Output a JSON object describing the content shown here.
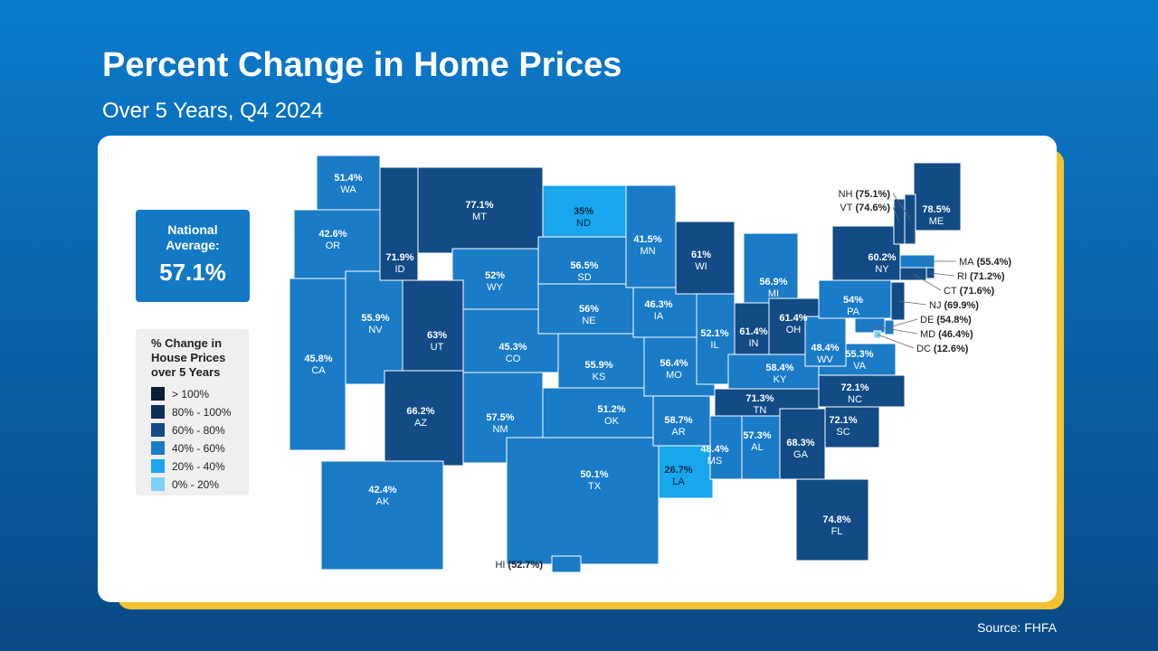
{
  "header": {
    "title": "Percent Change in Home Prices",
    "subtitle": "Over 5 Years, Q4 2024"
  },
  "national": {
    "title": "National Average:",
    "value": "57.1%"
  },
  "legend": {
    "title": "% Change in House Prices over 5 Years",
    "items": [
      {
        "label": "> 100%",
        "color": "#0b1d33"
      },
      {
        "label": "80% - 100%",
        "color": "#0f2f57"
      },
      {
        "label": "60% - 80%",
        "color": "#124b85"
      },
      {
        "label": "40% - 60%",
        "color": "#1a7bc6"
      },
      {
        "label": "20% - 40%",
        "color": "#18a7ec"
      },
      {
        "label": "0% - 20%",
        "color": "#80cff4"
      }
    ]
  },
  "states": [
    {
      "code": "WA",
      "value": 51.4,
      "label": "51.4%",
      "color": "#1a7bc6"
    },
    {
      "code": "OR",
      "value": 42.6,
      "label": "42.6%",
      "color": "#1a7bc6"
    },
    {
      "code": "CA",
      "value": 45.8,
      "label": "45.8%",
      "color": "#1a7bc6"
    },
    {
      "code": "NV",
      "value": 55.9,
      "label": "55.9%",
      "color": "#1a7bc6"
    },
    {
      "code": "ID",
      "value": 71.9,
      "label": "71.9%",
      "color": "#124b85"
    },
    {
      "code": "MT",
      "value": 77.1,
      "label": "77.1%",
      "color": "#124b85"
    },
    {
      "code": "WY",
      "value": 52,
      "label": "52%",
      "color": "#1a7bc6"
    },
    {
      "code": "UT",
      "value": 63,
      "label": "63%",
      "color": "#124b85"
    },
    {
      "code": "AZ",
      "value": 66.2,
      "label": "66.2%",
      "color": "#124b85"
    },
    {
      "code": "CO",
      "value": 45.3,
      "label": "45.3%",
      "color": "#1a7bc6"
    },
    {
      "code": "NM",
      "value": 57.5,
      "label": "57.5%",
      "color": "#1a7bc6"
    },
    {
      "code": "ND",
      "value": 35,
      "label": "35%",
      "color": "#18a7ec"
    },
    {
      "code": "SD",
      "value": 56.5,
      "label": "56.5%",
      "color": "#1a7bc6"
    },
    {
      "code": "NE",
      "value": 56,
      "label": "56%",
      "color": "#1a7bc6"
    },
    {
      "code": "KS",
      "value": 55.9,
      "label": "55.9%",
      "color": "#1a7bc6"
    },
    {
      "code": "OK",
      "value": 51.2,
      "label": "51.2%",
      "color": "#1a7bc6"
    },
    {
      "code": "TX",
      "value": 50.1,
      "label": "50.1%",
      "color": "#1a7bc6"
    },
    {
      "code": "MN",
      "value": 41.5,
      "label": "41.5%",
      "color": "#1a7bc6"
    },
    {
      "code": "IA",
      "value": 46.3,
      "label": "46.3%",
      "color": "#1a7bc6"
    },
    {
      "code": "MO",
      "value": 56.4,
      "label": "56.4%",
      "color": "#1a7bc6"
    },
    {
      "code": "AR",
      "value": 58.7,
      "label": "58.7%",
      "color": "#1a7bc6"
    },
    {
      "code": "LA",
      "value": 26.7,
      "label": "26.7%",
      "color": "#18a7ec"
    },
    {
      "code": "WI",
      "value": 61,
      "label": "61%",
      "color": "#124b85"
    },
    {
      "code": "IL",
      "value": 52.1,
      "label": "52.1%",
      "color": "#1a7bc6"
    },
    {
      "code": "MI",
      "value": 56.9,
      "label": "56.9%",
      "color": "#1a7bc6"
    },
    {
      "code": "IN",
      "value": 61.4,
      "label": "61.4%",
      "color": "#124b85"
    },
    {
      "code": "OH",
      "value": 61.4,
      "label": "61.4%",
      "color": "#124b85"
    },
    {
      "code": "KY",
      "value": 58.4,
      "label": "58.4%",
      "color": "#1a7bc6"
    },
    {
      "code": "TN",
      "value": 71.3,
      "label": "71.3%",
      "color": "#124b85"
    },
    {
      "code": "MS",
      "value": 48.4,
      "label": "48.4%",
      "color": "#1a7bc6"
    },
    {
      "code": "AL",
      "value": 57.3,
      "label": "57.3%",
      "color": "#1a7bc6"
    },
    {
      "code": "GA",
      "value": 68.3,
      "label": "68.3%",
      "color": "#124b85"
    },
    {
      "code": "FL",
      "value": 74.8,
      "label": "74.8%",
      "color": "#124b85"
    },
    {
      "code": "SC",
      "value": 72.1,
      "label": "72.1%",
      "color": "#124b85"
    },
    {
      "code": "NC",
      "value": 72.1,
      "label": "72.1%",
      "color": "#124b85"
    },
    {
      "code": "VA",
      "value": 55.3,
      "label": "55.3%",
      "color": "#1a7bc6"
    },
    {
      "code": "WV",
      "value": 48.4,
      "label": "48.4%",
      "color": "#1a7bc6"
    },
    {
      "code": "PA",
      "value": 54,
      "label": "54%",
      "color": "#1a7bc6"
    },
    {
      "code": "NY",
      "value": 60.2,
      "label": "60.2%",
      "color": "#124b85"
    },
    {
      "code": "ME",
      "value": 78.5,
      "label": "78.5%",
      "color": "#124b85"
    },
    {
      "code": "AK",
      "value": 42.4,
      "label": "42.4%",
      "color": "#1a7bc6"
    },
    {
      "code": "HI",
      "value": 52.7,
      "label": "(52.7%)",
      "color": "#1a7bc6"
    },
    {
      "code": "NH",
      "value": 75.1,
      "label": "(75.1%)",
      "color": "#124b85"
    },
    {
      "code": "VT",
      "value": 74.6,
      "label": "(74.6%)",
      "color": "#124b85"
    },
    {
      "code": "MA",
      "value": 55.4,
      "label": "(55.4%)",
      "color": "#1a7bc6"
    },
    {
      "code": "RI",
      "value": 71.2,
      "label": "(71.2%)",
      "color": "#124b85"
    },
    {
      "code": "CT",
      "value": 71.6,
      "label": "(71.6%)",
      "color": "#124b85"
    },
    {
      "code": "NJ",
      "value": 69.9,
      "label": "(69.9%)",
      "color": "#124b85"
    },
    {
      "code": "DE",
      "value": 54.8,
      "label": "(54.8%)",
      "color": "#1a7bc6"
    },
    {
      "code": "MD",
      "value": 46.4,
      "label": "(46.4%)",
      "color": "#1a7bc6"
    },
    {
      "code": "DC",
      "value": 12.6,
      "label": "(12.6%)",
      "color": "#80cff4"
    }
  ],
  "source": "Source: FHFA"
}
